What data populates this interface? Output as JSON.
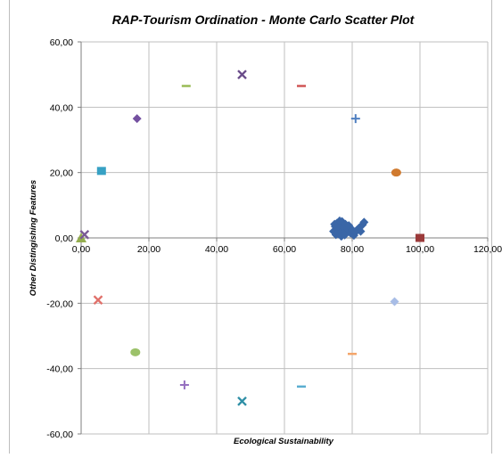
{
  "chart_data": {
    "type": "scatter",
    "title": "RAP-Tourism Ordination - Monte Carlo Scatter Plot",
    "xlabel": "Ecological Sustainability",
    "ylabel": "Other Distingishing Features",
    "xlim": [
      0,
      120
    ],
    "ylim": [
      -60,
      60
    ],
    "x_ticks": [
      0,
      20,
      40,
      60,
      80,
      100,
      120
    ],
    "x_tick_labels": [
      "0,00",
      "20,00",
      "40,00",
      "60,00",
      "80,00",
      "100,00",
      "120,00"
    ],
    "y_ticks": [
      -60,
      -40,
      -20,
      0,
      20,
      40,
      60
    ],
    "y_tick_labels": [
      "-60,00",
      "-40,00",
      "-20,00",
      "0,00",
      "20,00",
      "40,00",
      "60,00"
    ],
    "grid": true,
    "legend": "none",
    "series": [
      {
        "marker": "diamond",
        "color": "#3a66a7",
        "points": [
          [
            74.5,
            2.0
          ],
          [
            75.0,
            3.5
          ],
          [
            75.5,
            4.5
          ],
          [
            76.0,
            2.5
          ],
          [
            76.0,
            1.2
          ],
          [
            76.5,
            3.8
          ],
          [
            77.0,
            5.0
          ],
          [
            77.2,
            2.2
          ],
          [
            77.5,
            3.2
          ],
          [
            78.0,
            4.2
          ],
          [
            78.2,
            1.8
          ],
          [
            78.5,
            2.8
          ],
          [
            79.0,
            3.8
          ],
          [
            79.5,
            1.5
          ],
          [
            80.0,
            2.5
          ],
          [
            80.5,
            0.8
          ],
          [
            81.0,
            1.8
          ],
          [
            81.5,
            2.5
          ],
          [
            82.0,
            3.0
          ],
          [
            82.5,
            2.0
          ],
          [
            83.0,
            4.0
          ],
          [
            83.5,
            4.8
          ],
          [
            75.2,
            1.0
          ],
          [
            76.8,
            0.5
          ],
          [
            77.8,
            0.9
          ],
          [
            74.8,
            4.2
          ],
          [
            76.3,
            5.2
          ]
        ]
      },
      {
        "marker": "square",
        "color": "#9b3a3a",
        "points": [
          [
            100,
            0
          ]
        ]
      },
      {
        "marker": "triangle",
        "color": "#94ad4e",
        "points": [
          [
            0,
            0
          ]
        ]
      },
      {
        "marker": "x",
        "color": "#7a5a96",
        "points": [
          [
            1,
            1
          ]
        ]
      },
      {
        "marker": "square",
        "color": "#37a1c4",
        "points": [
          [
            6,
            20.5
          ]
        ]
      },
      {
        "marker": "circle",
        "color": "#d07a2e",
        "points": [
          [
            93,
            20
          ]
        ]
      },
      {
        "marker": "plus",
        "color": "#4f7fc0",
        "points": [
          [
            81,
            36.5
          ]
        ]
      },
      {
        "marker": "diamond",
        "color": "#7450a0",
        "points": [
          [
            16.5,
            36.5
          ]
        ]
      },
      {
        "marker": "dash",
        "color": "#99bb55",
        "points": [
          [
            31,
            46.5
          ]
        ]
      },
      {
        "marker": "x",
        "color": "#6a4c8a",
        "points": [
          [
            47.5,
            50
          ]
        ]
      },
      {
        "marker": "dash",
        "color": "#d05555",
        "points": [
          [
            65,
            46.5
          ]
        ]
      },
      {
        "marker": "x",
        "color": "#e0706a",
        "points": [
          [
            5,
            -19
          ]
        ]
      },
      {
        "marker": "diamond",
        "color": "#a8bde6",
        "points": [
          [
            92.5,
            -19.5
          ]
        ]
      },
      {
        "marker": "circle",
        "color": "#9cc26a",
        "points": [
          [
            16,
            -35
          ]
        ]
      },
      {
        "marker": "dash",
        "color": "#f4a56a",
        "points": [
          [
            80,
            -35.5
          ]
        ]
      },
      {
        "marker": "plus",
        "color": "#9670c0",
        "points": [
          [
            30.5,
            -45
          ]
        ]
      },
      {
        "marker": "dash",
        "color": "#5aaed0",
        "points": [
          [
            65,
            -45.5
          ]
        ]
      },
      {
        "marker": "x",
        "color": "#2f8fa6",
        "points": [
          [
            47.5,
            -50
          ]
        ]
      }
    ]
  }
}
